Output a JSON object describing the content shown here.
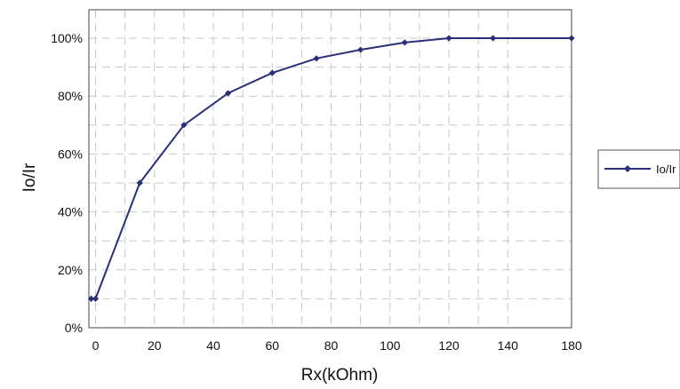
{
  "chart_data": {
    "type": "line",
    "xlabel": "Rx(kOhm)",
    "ylabel": "Io/Ir",
    "x_tick_labels": [
      "0",
      "20",
      "40",
      "60",
      "80",
      "100",
      "120",
      "140",
      "180"
    ],
    "y_tick_labels": [
      "0%",
      "20%",
      "40%",
      "60%",
      "80%",
      "100%"
    ],
    "ylim": [
      0,
      110
    ],
    "y_unit": "%",
    "grid": true,
    "grid_style": "dashed",
    "legend_position": "right",
    "series": [
      {
        "name": "Io/Ir",
        "color": "#2a2f7a",
        "marker": "diamond",
        "x": [
          -1.5,
          0,
          15,
          30,
          45,
          60,
          75,
          90,
          105,
          120,
          135,
          180
        ],
        "values": [
          10,
          10,
          50,
          70,
          81,
          88,
          93,
          96,
          98.5,
          100,
          100,
          100
        ]
      }
    ]
  }
}
